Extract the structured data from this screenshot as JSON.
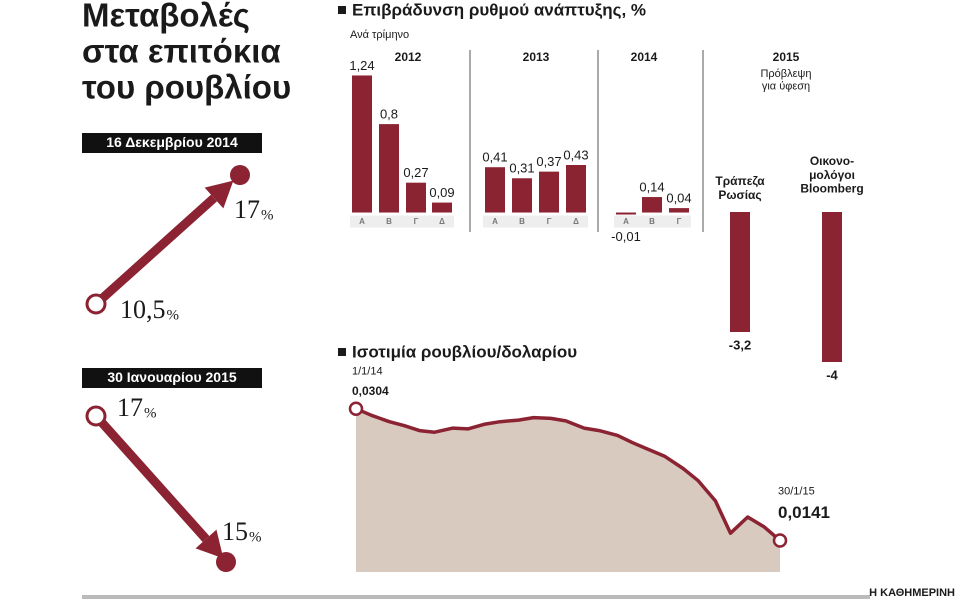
{
  "title_lines": [
    "Μεταβολές",
    "στα επιτόκια",
    "του ρουβλίου"
  ],
  "rate_changes": [
    {
      "date": "16 Δεκεμβρίου 2014",
      "from": 10.5,
      "from_label": "10,5",
      "to": 17,
      "to_label": "17",
      "unit": "%"
    },
    {
      "date": "30 Ιανουαρίου 2015",
      "from": 17,
      "from_label": "17",
      "to": 15,
      "to_label": "15",
      "unit": "%"
    }
  ],
  "chart_data": [
    {
      "type": "bar",
      "title": "Επιβράδυνση ρυθμού ανάπτυξης, %",
      "subtitle": "Ανά τρίμηνο",
      "color": "#8b2332",
      "ylim": [
        -0.14,
        1.38
      ],
      "groups": [
        {
          "label": "2012",
          "categories": [
            "Α",
            "Β",
            "Γ",
            "Δ"
          ],
          "values": [
            1.24,
            0.8,
            0.27,
            0.09
          ],
          "value_labels": [
            "1,24",
            "0,8",
            "0,27",
            "0,09"
          ]
        },
        {
          "label": "2013",
          "categories": [
            "Α",
            "Β",
            "Γ",
            "Δ"
          ],
          "values": [
            0.41,
            0.31,
            0.37,
            0.43
          ],
          "value_labels": [
            "0,41",
            "0,31",
            "0,37",
            "0,43"
          ]
        },
        {
          "label": "2014",
          "categories": [
            "Α",
            "Β",
            "Γ"
          ],
          "values": [
            -0.01,
            0.14,
            0.04
          ],
          "value_labels": [
            "-0,01",
            "0,14",
            "0,04"
          ]
        }
      ],
      "forecast": {
        "label": "2015",
        "note": "Πρόβλεψη\nγια ύφεση",
        "ylim": [
          -4.4,
          0
        ],
        "categories": [
          "Τράπεζα\nΡωσίας",
          "Οικονο-\nμολόγοι\nBloomberg"
        ],
        "values": [
          -3.2,
          -4
        ],
        "value_labels": [
          "-3,2",
          "-4"
        ]
      }
    },
    {
      "type": "area",
      "title": "Ισοτιμία ρουβλίου/δολαρίου",
      "color": "#8b2332",
      "fill": "#d8cabf",
      "ylim": [
        0.0102,
        0.0321
      ],
      "x": [
        "1/1/14",
        "15/1/14",
        "1/2/14",
        "15/2/14",
        "1/3/14",
        "15/3/14",
        "1/4/14",
        "15/4/14",
        "1/5/14",
        "15/5/14",
        "1/6/14",
        "15/6/14",
        "1/7/14",
        "15/7/14",
        "1/8/14",
        "15/8/14",
        "1/9/14",
        "15/9/14",
        "1/10/14",
        "15/10/14",
        "1/11/14",
        "15/11/14",
        "1/12/14",
        "15/12/14",
        "31/12/14",
        "15/1/15",
        "30/1/15"
      ],
      "values": [
        0.0304,
        0.0296,
        0.0288,
        0.0283,
        0.0277,
        0.0275,
        0.028,
        0.0279,
        0.0285,
        0.0288,
        0.029,
        0.0293,
        0.0292,
        0.0289,
        0.028,
        0.0277,
        0.0271,
        0.0262,
        0.0253,
        0.0245,
        0.023,
        0.0215,
        0.019,
        0.015,
        0.017,
        0.0158,
        0.0141
      ],
      "value_labels": [
        "0,0304",
        null,
        null,
        null,
        null,
        null,
        null,
        null,
        null,
        null,
        null,
        null,
        null,
        null,
        null,
        null,
        null,
        null,
        null,
        null,
        null,
        null,
        null,
        null,
        null,
        null,
        "0,0141"
      ]
    }
  ],
  "footer": "Η ΚΑΘΗΜΕΡΙΝΗ"
}
